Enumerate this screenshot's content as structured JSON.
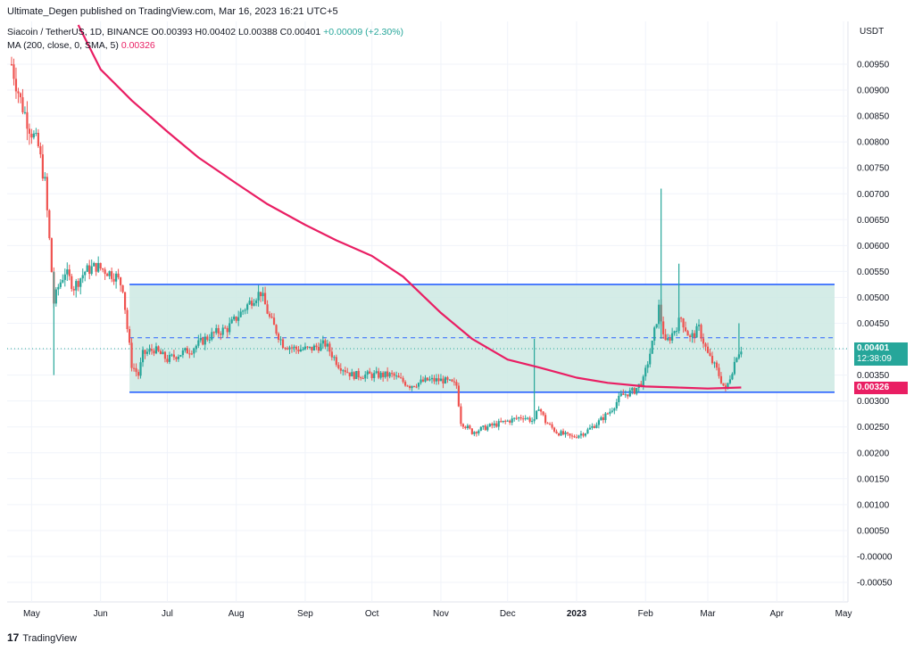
{
  "header": {
    "published": "Ultimate_Degen published on TradingView.com, Mar 16, 2023 16:21 UTC+5"
  },
  "legend": {
    "symbol": "Siacoin / TetherUS, 1D, BINANCE",
    "ohlc": "O0.00393 H0.00402 L0.00388 C0.00401",
    "change": "+0.00009 (+2.30%)",
    "ma_label": "MA (200, close, 0, SMA, 5)",
    "ma_value": "0.00326"
  },
  "axis_unit": "USDT",
  "price_tag": {
    "price": "0.00401",
    "countdown": "12:38:09",
    "ma": "0.00326"
  },
  "footer": {
    "brand": "TradingView",
    "logo_text": "17"
  },
  "colors": {
    "up": "#26a69a",
    "down": "#ef5350",
    "ma": "#e91e63",
    "range_fill": "#cce9e3",
    "range_line": "#2962ff",
    "midline": "#2962ff"
  },
  "chart_data": {
    "type": "candlestick",
    "title": "Siacoin / TetherUS, 1D, BINANCE",
    "ylabel": "USDT",
    "ylim": [
      -0.0005,
      0.01
    ],
    "y_ticks": [
      "0.00950",
      "0.00900",
      "0.00850",
      "0.00800",
      "0.00750",
      "0.00700",
      "0.00650",
      "0.00600",
      "0.00550",
      "0.00500",
      "0.00450",
      "0.00400",
      "0.00350",
      "0.00300",
      "0.00250",
      "0.00200",
      "0.00150",
      "0.00100",
      "0.00050",
      "-0.00000",
      "-0.00050"
    ],
    "x_ticks": [
      {
        "label": "May",
        "date": "2022-05-01"
      },
      {
        "label": "Jun",
        "date": "2022-06-01"
      },
      {
        "label": "Jul",
        "date": "2022-07-01"
      },
      {
        "label": "Aug",
        "date": "2022-08-01"
      },
      {
        "label": "Sep",
        "date": "2022-09-01"
      },
      {
        "label": "Oct",
        "date": "2022-10-01"
      },
      {
        "label": "Nov",
        "date": "2022-11-01"
      },
      {
        "label": "Dec",
        "date": "2022-12-01"
      },
      {
        "label": "2023",
        "date": "2023-01-01"
      },
      {
        "label": "Feb",
        "date": "2023-02-01"
      },
      {
        "label": "Mar",
        "date": "2023-03-01"
      },
      {
        "label": "Apr",
        "date": "2023-04-01"
      },
      {
        "label": "May",
        "date": "2023-05-01"
      }
    ],
    "range_box": {
      "top": 0.00525,
      "bottom": 0.00317,
      "mid": 0.00422,
      "start": "2022-06-14",
      "end": "2023-05-01"
    },
    "close_path": [
      [
        "2022-04-22",
        0.0095
      ],
      [
        "2022-04-26",
        0.0088
      ],
      [
        "2022-04-30",
        0.0083
      ],
      [
        "2022-05-04",
        0.0079
      ],
      [
        "2022-05-07",
        0.0072
      ],
      [
        "2022-05-09",
        0.0061
      ],
      [
        "2022-05-11",
        0.0049
      ],
      [
        "2022-05-13",
        0.0052
      ],
      [
        "2022-05-16",
        0.0055
      ],
      [
        "2022-05-20",
        0.0052
      ],
      [
        "2022-05-25",
        0.0055
      ],
      [
        "2022-05-30",
        0.0056
      ],
      [
        "2022-06-04",
        0.0055
      ],
      [
        "2022-06-08",
        0.0054
      ],
      [
        "2022-06-11",
        0.0052
      ],
      [
        "2022-06-13",
        0.0044
      ],
      [
        "2022-06-15",
        0.0037
      ],
      [
        "2022-06-18",
        0.0035
      ],
      [
        "2022-06-20",
        0.0039
      ],
      [
        "2022-06-25",
        0.004
      ],
      [
        "2022-07-01",
        0.0038
      ],
      [
        "2022-07-06",
        0.0039
      ],
      [
        "2022-07-12",
        0.004
      ],
      [
        "2022-07-18",
        0.0042
      ],
      [
        "2022-07-22",
        0.0043
      ],
      [
        "2022-07-28",
        0.0044
      ],
      [
        "2022-08-03",
        0.0047
      ],
      [
        "2022-08-09",
        0.005
      ],
      [
        "2022-08-12",
        0.0051
      ],
      [
        "2022-08-16",
        0.0046
      ],
      [
        "2022-08-22",
        0.0041
      ],
      [
        "2022-08-28",
        0.004
      ],
      [
        "2022-09-03",
        0.004
      ],
      [
        "2022-09-10",
        0.0041
      ],
      [
        "2022-09-16",
        0.0037
      ],
      [
        "2022-09-22",
        0.0035
      ],
      [
        "2022-10-01",
        0.0035
      ],
      [
        "2022-10-10",
        0.0035
      ],
      [
        "2022-10-18",
        0.0033
      ],
      [
        "2022-10-26",
        0.0034
      ],
      [
        "2022-11-02",
        0.0034
      ],
      [
        "2022-11-08",
        0.0033
      ],
      [
        "2022-11-10",
        0.0026
      ],
      [
        "2022-11-15",
        0.0024
      ],
      [
        "2022-11-22",
        0.0025
      ],
      [
        "2022-11-30",
        0.0026
      ],
      [
        "2022-12-08",
        0.0027
      ],
      [
        "2022-12-13",
        0.0026
      ],
      [
        "2022-12-15",
        0.0029
      ],
      [
        "2022-12-18",
        0.0026
      ],
      [
        "2022-12-23",
        0.0024
      ],
      [
        "2022-12-30",
        0.0023
      ],
      [
        "2023-01-05",
        0.0024
      ],
      [
        "2023-01-11",
        0.0026
      ],
      [
        "2023-01-16",
        0.0028
      ],
      [
        "2023-01-21",
        0.0031
      ],
      [
        "2023-01-27",
        0.0032
      ],
      [
        "2023-01-31",
        0.0034
      ],
      [
        "2023-02-04",
        0.0041
      ],
      [
        "2023-02-07",
        0.0048
      ],
      [
        "2023-02-10",
        0.0041
      ],
      [
        "2023-02-13",
        0.0043
      ],
      [
        "2023-02-17",
        0.0046
      ],
      [
        "2023-02-21",
        0.0042
      ],
      [
        "2023-02-25",
        0.0044
      ],
      [
        "2023-03-01",
        0.0039
      ],
      [
        "2023-03-05",
        0.0036
      ],
      [
        "2023-03-09",
        0.0032
      ],
      [
        "2023-03-12",
        0.0036
      ],
      [
        "2023-03-14",
        0.0039
      ],
      [
        "2023-03-16",
        0.00401
      ]
    ],
    "highlight_wicks": [
      {
        "date": "2022-05-11",
        "high": 0.0055,
        "low": 0.0035
      },
      {
        "date": "2022-12-13",
        "high": 0.0042,
        "low": 0.0026
      },
      {
        "date": "2023-02-08",
        "high": 0.0071,
        "low": 0.0042
      },
      {
        "date": "2023-02-16",
        "high": 0.00565,
        "low": 0.0043
      },
      {
        "date": "2023-03-15",
        "high": 0.0045,
        "low": 0.0038
      }
    ],
    "ma_path": [
      [
        "2022-05-22",
        0.0103
      ],
      [
        "2022-06-01",
        0.0094
      ],
      [
        "2022-06-15",
        0.0088
      ],
      [
        "2022-07-01",
        0.0082
      ],
      [
        "2022-07-15",
        0.0077
      ],
      [
        "2022-08-01",
        0.0072
      ],
      [
        "2022-08-15",
        0.0068
      ],
      [
        "2022-09-01",
        0.0064
      ],
      [
        "2022-09-15",
        0.0061
      ],
      [
        "2022-10-01",
        0.0058
      ],
      [
        "2022-10-15",
        0.0054
      ],
      [
        "2022-11-01",
        0.0047
      ],
      [
        "2022-11-15",
        0.0042
      ],
      [
        "2022-12-01",
        0.0038
      ],
      [
        "2022-12-15",
        0.00365
      ],
      [
        "2023-01-01",
        0.00345
      ],
      [
        "2023-01-15",
        0.00335
      ],
      [
        "2023-02-01",
        0.00328
      ],
      [
        "2023-02-15",
        0.00326
      ],
      [
        "2023-03-01",
        0.00324
      ],
      [
        "2023-03-16",
        0.00326
      ]
    ],
    "last_price": 0.00401,
    "ma_last": 0.00326
  }
}
